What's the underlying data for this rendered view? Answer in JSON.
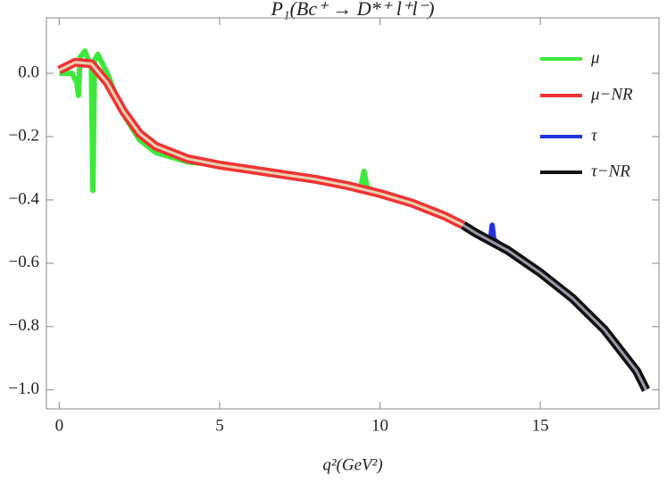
{
  "chart_data": {
    "type": "line",
    "title": "P₁(Bc⁺ → D*⁺ l⁺l⁻)",
    "x_label": "q²(GeV²)",
    "xlim": [
      -0.4,
      18.7
    ],
    "ylim": [
      -1.06,
      0.175
    ],
    "xticks": [
      0,
      5,
      10,
      15
    ],
    "yticks": [
      {
        "value": 0,
        "label": "0.0"
      },
      {
        "value": -0.2,
        "label": "−0.2"
      },
      {
        "value": -0.4,
        "label": "−0.4"
      },
      {
        "value": -0.6,
        "label": "−0.6"
      },
      {
        "value": -0.8,
        "label": "−0.8"
      },
      {
        "value": -1,
        "label": "−1.0"
      }
    ],
    "legend": "top-right",
    "series": [
      {
        "name": "μ",
        "color": "#3de83d",
        "x": [
          0,
          0.4,
          0.55,
          0.6,
          0.65,
          0.8,
          1.0,
          1.05,
          1.1,
          1.2,
          1.5,
          2,
          2.5,
          3,
          4,
          5,
          6,
          7,
          8,
          9,
          9.4,
          9.5,
          9.6,
          10,
          11,
          12,
          12.6
        ],
        "values": [
          0.0,
          0.0,
          -0.03,
          -0.07,
          0.05,
          0.07,
          0.02,
          -0.37,
          0.04,
          0.06,
          0.0,
          -0.13,
          -0.21,
          -0.25,
          -0.28,
          -0.29,
          -0.305,
          -0.32,
          -0.335,
          -0.355,
          -0.36,
          -0.31,
          -0.36,
          -0.38,
          -0.41,
          -0.45,
          -0.48
        ]
      },
      {
        "name": "τ",
        "color": "#2233dd",
        "x": [
          12.6,
          13,
          13.45,
          13.5,
          13.55,
          14,
          15,
          16,
          17,
          18,
          18.3
        ],
        "values": [
          -0.48,
          -0.505,
          -0.525,
          -0.48,
          -0.525,
          -0.56,
          -0.63,
          -0.71,
          -0.81,
          -0.94,
          -1.0
        ]
      },
      {
        "name": "μ−NR",
        "color": "#ee3333",
        "x": [
          0,
          0.5,
          1,
          1.5,
          2,
          2.5,
          3,
          4,
          5,
          6,
          7,
          8,
          9,
          10,
          11,
          12,
          12.6
        ],
        "values": [
          0.01,
          0.035,
          0.03,
          -0.03,
          -0.12,
          -0.19,
          -0.23,
          -0.27,
          -0.29,
          -0.305,
          -0.32,
          -0.335,
          -0.355,
          -0.38,
          -0.41,
          -0.45,
          -0.48
        ]
      },
      {
        "name": "τ−NR",
        "color": "#111111",
        "x": [
          12.6,
          13,
          14,
          15,
          16,
          17,
          18,
          18.3
        ],
        "values": [
          -0.48,
          -0.505,
          -0.56,
          -0.63,
          -0.71,
          -0.81,
          -0.94,
          -1.0
        ]
      }
    ]
  }
}
